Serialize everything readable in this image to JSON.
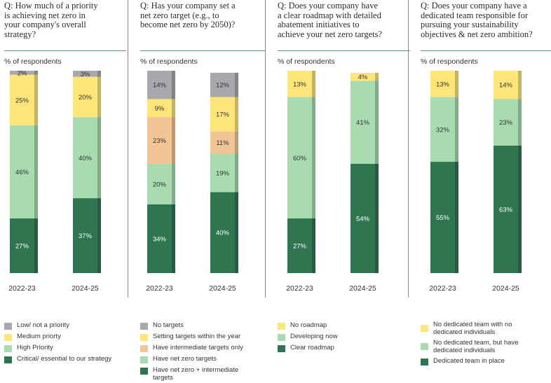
{
  "colors": {
    "gray": "#a7a9ac",
    "yellow": "#fde57a",
    "orange": "#f2c596",
    "lightgreen": "#a8dbb0",
    "darkgreen": "#2f7550"
  },
  "ylabel": "% of respondents",
  "chart_data": [
    {
      "type": "bar",
      "stacked": true,
      "question": "Q: How much of a priority\nis achieving net zero in\nyour company's overall\nstrategy?",
      "ylabel": "% of respondents",
      "categories": [
        "2022-23",
        "2024-25"
      ],
      "series": [
        {
          "name": "Critical/ essential to our strategy",
          "color": "darkgreen",
          "values": [
            27,
            37
          ]
        },
        {
          "name": "High Priority",
          "color": "lightgreen",
          "values": [
            46,
            40
          ]
        },
        {
          "name": "Medium priorty",
          "color": "yellow",
          "values": [
            25,
            20
          ]
        },
        {
          "name": "Low/ not a priority",
          "color": "gray",
          "values": [
            2,
            3
          ]
        }
      ],
      "legend": [
        "Low/ not a priority",
        "Medium priorty",
        "High Priority",
        "Critical/ essential to our strategy"
      ]
    },
    {
      "type": "bar",
      "stacked": true,
      "question": "Q: Has your company set a\nnet zero target (e.g., to\nbecome net zero by 2050)?",
      "ylabel": "% of respondents",
      "categories": [
        "2022-23",
        "2024-25"
      ],
      "series": [
        {
          "name": "Have net zero + intermediate targets",
          "color": "darkgreen",
          "values": [
            34,
            40
          ]
        },
        {
          "name": "Have net zero targets",
          "color": "lightgreen",
          "values": [
            20,
            19
          ]
        },
        {
          "name": "Have intermediate targets only",
          "color": "orange",
          "values": [
            23,
            11
          ]
        },
        {
          "name": "Setting targets within the year",
          "color": "yellow",
          "values": [
            9,
            17
          ]
        },
        {
          "name": "No targets",
          "color": "gray",
          "values": [
            14,
            12
          ]
        }
      ],
      "legend": [
        "No targets",
        "Setting targets within the year",
        "Have intermediate targets only",
        "Have net zero targets",
        "Have net zero + intermediate\ntargets"
      ]
    },
    {
      "type": "bar",
      "stacked": true,
      "question": "Q: Does your company have\na clear roadmap with detailed\nabatement initiatives to\nachieve your net zero targets?",
      "ylabel": "% of respondents",
      "categories": [
        "2022-23",
        "2024-25"
      ],
      "series": [
        {
          "name": "Clear roadmap",
          "color": "darkgreen",
          "values": [
            27,
            54
          ]
        },
        {
          "name": "Developing now",
          "color": "lightgreen",
          "values": [
            60,
            41
          ]
        },
        {
          "name": "No roadmap",
          "color": "yellow",
          "values": [
            13,
            4
          ]
        }
      ],
      "legend": [
        "No roadmap",
        "Developing now",
        "Clear roadmap"
      ]
    },
    {
      "type": "bar",
      "stacked": true,
      "question": "Q: Does your company have a\ndedicated team responsible for\npursuing your sustainability\nobjectives & net zero ambition?",
      "ylabel": "% of respondents",
      "categories": [
        "2022-23",
        "2024-25"
      ],
      "series": [
        {
          "name": "Dedicated team in place",
          "color": "darkgreen",
          "values": [
            55,
            63
          ]
        },
        {
          "name": "No dedicated team, but have dedicated individuals",
          "color": "lightgreen",
          "values": [
            32,
            23
          ]
        },
        {
          "name": "No dedicated team with no dedicated individuals",
          "color": "yellow",
          "values": [
            13,
            14
          ]
        }
      ],
      "legend": [
        "No dedicated team with no\ndedicated individuals",
        "No dedicated team, but have\ndedicated individuals",
        "Dedicated team in place"
      ]
    }
  ]
}
